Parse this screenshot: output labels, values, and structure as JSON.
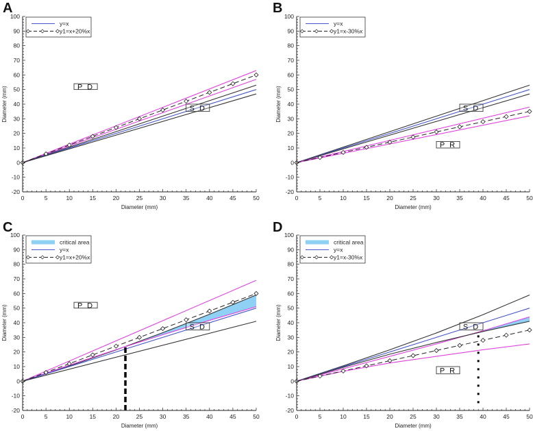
{
  "chart_data": [
    {
      "panel": "A",
      "type": "line",
      "xlabel": "Diameter (mm)",
      "ylabel": "Diameter (mm)",
      "xlim": [
        0,
        50
      ],
      "ylim": [
        -20,
        100
      ],
      "xticks": [
        0,
        5,
        10,
        15,
        20,
        25,
        30,
        35,
        40,
        45,
        50
      ],
      "yticks": [
        -20,
        -10,
        0,
        10,
        20,
        30,
        40,
        50,
        60,
        70,
        80,
        90,
        100
      ],
      "legend": {
        "position": "top-left",
        "entries": [
          {
            "label": "y=x",
            "kind": "line",
            "color": "#4455cc"
          },
          {
            "label": "y1=x+20%x",
            "kind": "dashed-diamond",
            "color": "#222222"
          }
        ]
      },
      "series": [
        {
          "name": "upper magenta",
          "color": "#e040e0",
          "style": "solid",
          "x": [
            0,
            50
          ],
          "y": [
            0,
            63
          ]
        },
        {
          "name": "lower magenta",
          "color": "#e040e0",
          "style": "solid",
          "x": [
            0,
            50
          ],
          "y": [
            0,
            57
          ]
        },
        {
          "name": "upper black",
          "color": "#333333",
          "style": "solid",
          "x": [
            0,
            50
          ],
          "y": [
            0,
            53
          ]
        },
        {
          "name": "y=x",
          "color": "#4455cc",
          "style": "solid",
          "x": [
            0,
            50
          ],
          "y": [
            0,
            50
          ]
        },
        {
          "name": "lower black",
          "color": "#333333",
          "style": "solid",
          "x": [
            0,
            50
          ],
          "y": [
            0,
            47
          ]
        },
        {
          "name": "y1=x+20%x",
          "color": "#222222",
          "style": "dashed-diamond",
          "x": [
            0,
            5,
            10,
            15,
            20,
            25,
            30,
            35,
            40,
            45,
            50
          ],
          "y": [
            0,
            6,
            12,
            18,
            24,
            30,
            36,
            42,
            48,
            54,
            60
          ]
        }
      ],
      "annotations": [
        {
          "text": "P D",
          "x": [
            11,
            16
          ],
          "y": [
            50,
            54
          ]
        },
        {
          "text": "S D",
          "x": [
            35,
            40
          ],
          "y": [
            35,
            40
          ]
        }
      ]
    },
    {
      "panel": "B",
      "type": "line",
      "xlabel": "Diameter (mm)",
      "ylabel": "Diameter (mm)",
      "xlim": [
        0,
        50
      ],
      "ylim": [
        -20,
        100
      ],
      "xticks": [
        0,
        5,
        10,
        15,
        20,
        25,
        30,
        35,
        40,
        45,
        50
      ],
      "yticks": [
        -20,
        -10,
        0,
        10,
        20,
        30,
        40,
        50,
        60,
        70,
        80,
        90,
        100
      ],
      "legend": {
        "position": "top-left",
        "entries": [
          {
            "label": "y=x",
            "kind": "line",
            "color": "#4455cc"
          },
          {
            "label": "y1=x-30%x",
            "kind": "dashed-diamond",
            "color": "#222222"
          }
        ]
      },
      "series": [
        {
          "name": "upper black",
          "color": "#333333",
          "style": "solid",
          "x": [
            0,
            50
          ],
          "y": [
            0,
            53
          ]
        },
        {
          "name": "y=x",
          "color": "#4455cc",
          "style": "solid",
          "x": [
            0,
            50
          ],
          "y": [
            0,
            50
          ]
        },
        {
          "name": "lower black",
          "color": "#333333",
          "style": "solid",
          "x": [
            0,
            50
          ],
          "y": [
            0,
            47
          ]
        },
        {
          "name": "upper magenta",
          "color": "#e040e0",
          "style": "solid",
          "x": [
            0,
            50
          ],
          "y": [
            0,
            38
          ]
        },
        {
          "name": "lower magenta",
          "color": "#e040e0",
          "style": "solid",
          "x": [
            0,
            50
          ],
          "y": [
            0,
            32
          ]
        },
        {
          "name": "y1=x-30%x",
          "color": "#222222",
          "style": "dashed-diamond",
          "x": [
            0,
            5,
            10,
            15,
            20,
            25,
            30,
            35,
            40,
            45,
            50
          ],
          "y": [
            0,
            3.5,
            7,
            10.5,
            14,
            17.5,
            21,
            24.5,
            28,
            31.5,
            35
          ]
        }
      ],
      "annotations": [
        {
          "text": "S D",
          "x": [
            35,
            40
          ],
          "y": [
            35,
            40
          ]
        },
        {
          "text": "P R",
          "x": [
            30,
            35
          ],
          "y": [
            10,
            14.5
          ]
        }
      ]
    },
    {
      "panel": "C",
      "type": "line",
      "xlabel": "Diameter (mm)",
      "ylabel": "Diameter (mm)",
      "xlim": [
        0,
        50
      ],
      "ylim": [
        -20,
        100
      ],
      "xticks": [
        0,
        5,
        10,
        15,
        20,
        25,
        30,
        35,
        40,
        45,
        50
      ],
      "yticks": [
        -20,
        -10,
        0,
        10,
        20,
        30,
        40,
        50,
        60,
        70,
        80,
        90,
        100
      ],
      "legend": {
        "position": "top-left",
        "entries": [
          {
            "label": "critical area",
            "kind": "area",
            "color": "#8fd0f5"
          },
          {
            "label": "y=x",
            "kind": "line",
            "color": "#4455cc"
          },
          {
            "label": "y1=x+20%x",
            "kind": "dashed-diamond",
            "color": "#222222"
          }
        ]
      },
      "area": {
        "color": "#8fd0f5",
        "x": [
          22,
          26,
          30,
          34,
          38,
          42,
          46,
          50
        ],
        "upper": [
          23.7,
          28.4,
          33.2,
          38.2,
          43.2,
          48.4,
          53.6,
          59
        ],
        "lower": [
          23.7,
          28.1,
          31.8,
          35.8,
          39.7,
          43.5,
          47.3,
          51
        ]
      },
      "series": [
        {
          "name": "upper magenta",
          "color": "#e040e0",
          "style": "solid",
          "x": [
            0,
            50
          ],
          "y": [
            0,
            69
          ]
        },
        {
          "name": "upper black",
          "color": "#333333",
          "style": "solid",
          "x": [
            0,
            10,
            20,
            30,
            40,
            50
          ],
          "y": [
            0,
            10.4,
            21.4,
            33.2,
            45.8,
            59
          ]
        },
        {
          "name": "lower magenta",
          "color": "#e040e0",
          "style": "solid",
          "x": [
            0,
            10,
            20,
            30,
            40,
            50
          ],
          "y": [
            0,
            11,
            21.6,
            31.8,
            41.6,
            51
          ]
        },
        {
          "name": "y=x",
          "color": "#4455cc",
          "style": "solid",
          "x": [
            0,
            50
          ],
          "y": [
            0,
            50
          ]
        },
        {
          "name": "lower black",
          "color": "#333333",
          "style": "solid",
          "x": [
            0,
            50
          ],
          "y": [
            0,
            41
          ]
        },
        {
          "name": "y1=x+20%x",
          "color": "#222222",
          "style": "dashed-diamond",
          "x": [
            0,
            5,
            10,
            15,
            20,
            25,
            30,
            35,
            40,
            45,
            50
          ],
          "y": [
            0,
            6,
            12,
            18,
            24,
            30,
            36,
            42,
            48,
            54,
            60
          ]
        }
      ],
      "vline": {
        "x": 22,
        "y": [
          -20,
          24
        ],
        "style": "thick-dashed"
      },
      "annotations": [
        {
          "text": "P D",
          "x": [
            11,
            16
          ],
          "y": [
            50,
            54
          ]
        },
        {
          "text": "S D",
          "x": [
            35,
            40
          ],
          "y": [
            35,
            40
          ]
        }
      ]
    },
    {
      "panel": "D",
      "type": "line",
      "xlabel": "Diameter (mm)",
      "ylabel": "Diameter (mm)",
      "xlim": [
        0,
        50
      ],
      "ylim": [
        -20,
        100
      ],
      "xticks": [
        0,
        5,
        10,
        15,
        20,
        25,
        30,
        35,
        40,
        45,
        50
      ],
      "yticks": [
        -20,
        -10,
        0,
        10,
        20,
        30,
        40,
        50,
        60,
        70,
        80,
        90,
        100
      ],
      "legend": {
        "position": "top-left",
        "entries": [
          {
            "label": "critical area",
            "kind": "area",
            "color": "#8fd0f5"
          },
          {
            "label": "y=x",
            "kind": "line",
            "color": "#4455cc"
          },
          {
            "label": "y1=x-30%x",
            "kind": "dashed-diamond",
            "color": "#222222"
          }
        ]
      },
      "area": {
        "color": "#8fd0f5",
        "x": [
          39,
          42,
          46,
          50
        ],
        "upper": [
          33.6,
          36.4,
          40.2,
          44
        ],
        "lower": [
          33.3,
          35.5,
          38.3,
          41
        ]
      },
      "series": [
        {
          "name": "upper black",
          "color": "#333333",
          "style": "solid",
          "x": [
            0,
            10,
            20,
            30,
            40,
            50
          ],
          "y": [
            0,
            10.5,
            21.5,
            33,
            45.5,
            59
          ]
        },
        {
          "name": "y=x",
          "color": "#4455cc",
          "style": "solid",
          "x": [
            0,
            50
          ],
          "y": [
            0,
            50
          ]
        },
        {
          "name": "upper magenta",
          "color": "#e040e0",
          "style": "solid",
          "x": [
            0,
            10,
            20,
            30,
            40,
            50
          ],
          "y": [
            0,
            8.5,
            17,
            25.5,
            34.5,
            44
          ]
        },
        {
          "name": "lower black",
          "color": "#333333",
          "style": "solid",
          "x": [
            0,
            10,
            20,
            30,
            40,
            50
          ],
          "y": [
            0,
            9.5,
            18.5,
            26.5,
            34,
            41
          ]
        },
        {
          "name": "lower magenta",
          "color": "#e040e0",
          "style": "solid",
          "x": [
            0,
            10,
            20,
            30,
            40,
            50
          ],
          "y": [
            0,
            6.8,
            12.5,
            17,
            21.5,
            25.5
          ]
        },
        {
          "name": "y1=x-30%x",
          "color": "#222222",
          "style": "dashed-diamond",
          "x": [
            0,
            5,
            10,
            15,
            20,
            25,
            30,
            35,
            40,
            45,
            50
          ],
          "y": [
            0,
            3.5,
            7,
            10.5,
            14,
            17.5,
            21,
            24.5,
            28,
            31.5,
            35
          ]
        }
      ],
      "vline": {
        "x": 39,
        "y": [
          -15,
          32
        ],
        "style": "dotted"
      },
      "annotations": [
        {
          "text": "S D",
          "x": [
            35,
            40
          ],
          "y": [
            35,
            40
          ]
        },
        {
          "text": "P R",
          "x": [
            30,
            35
          ],
          "y": [
            5,
            10
          ]
        }
      ]
    }
  ]
}
